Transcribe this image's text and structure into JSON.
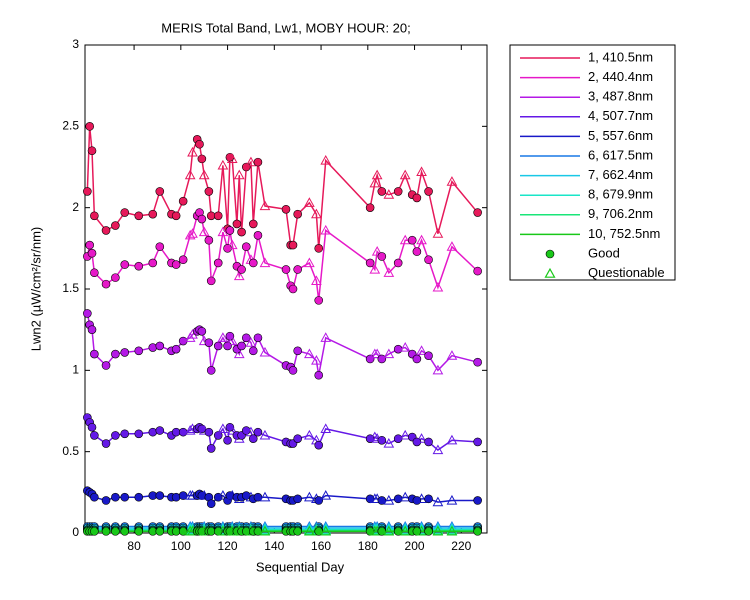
{
  "chart_data": {
    "type": "line",
    "title": "MERIS Total Band, Lw1, MOBY HOUR: 20;",
    "x_label": "Sequential Day",
    "y_label": "Lwn2 (µW/cm²/sr/nm)",
    "xlim": [
      59,
      231
    ],
    "ylim": [
      0,
      3
    ],
    "xticks": [
      80,
      100,
      120,
      140,
      160,
      180,
      200,
      220
    ],
    "yticks": [
      0,
      0.5,
      1,
      1.5,
      2,
      2.5,
      3
    ],
    "legend": "outside-upper-right",
    "marker_legend": [
      {
        "name": "Good",
        "color": "#19c819"
      },
      {
        "name": "Questionable",
        "color": "#19c819"
      }
    ],
    "x": [
      60,
      61,
      62,
      63,
      68,
      72,
      76,
      82,
      88,
      91,
      96,
      98,
      101,
      104,
      105,
      107,
      108,
      109,
      110,
      112,
      113,
      116,
      118,
      120,
      121,
      122,
      124,
      125,
      126,
      128,
      130,
      131,
      133,
      136,
      145,
      147,
      148,
      150,
      155,
      158,
      159,
      162,
      181,
      183,
      184,
      186,
      189,
      193,
      196,
      199,
      201,
      203,
      206,
      210,
      216,
      227
    ],
    "quality": [
      0,
      0,
      0,
      0,
      0,
      0,
      0,
      0,
      0,
      0,
      0,
      0,
      0,
      1,
      1,
      0,
      0,
      0,
      1,
      0,
      0,
      0,
      1,
      0,
      0,
      1,
      0,
      1,
      0,
      0,
      1,
      0,
      0,
      1,
      0,
      0,
      0,
      0,
      1,
      1,
      0,
      1,
      0,
      1,
      1,
      0,
      1,
      0,
      1,
      0,
      0,
      1,
      0,
      1,
      1,
      0
    ],
    "series": [
      {
        "name": "1, 410.5nm",
        "color": "#e6195a",
        "values": [
          2.1,
          2.5,
          2.35,
          1.95,
          1.86,
          1.89,
          1.97,
          1.95,
          1.96,
          2.1,
          1.96,
          1.95,
          2.04,
          2.2,
          2.34,
          2.42,
          2.39,
          2.3,
          2.2,
          2.1,
          1.95,
          1.95,
          2.26,
          1.87,
          2.31,
          2.3,
          1.9,
          2.2,
          1.85,
          2.25,
          2.28,
          1.9,
          2.28,
          2.01,
          1.99,
          1.77,
          1.77,
          1.96,
          2.03,
          1.96,
          1.75,
          2.29,
          2.0,
          2.15,
          2.2,
          2.1,
          2.08,
          2.1,
          2.2,
          2.08,
          2.06,
          2.22,
          2.1,
          1.84,
          2.16,
          1.97
        ]
      },
      {
        "name": "2, 440.4nm",
        "color": "#e619c8",
        "values": [
          1.7,
          1.77,
          1.72,
          1.6,
          1.53,
          1.57,
          1.65,
          1.64,
          1.66,
          1.76,
          1.66,
          1.65,
          1.68,
          1.83,
          1.84,
          1.95,
          1.97,
          1.93,
          1.85,
          1.8,
          1.55,
          1.66,
          1.85,
          1.75,
          1.86,
          1.77,
          1.64,
          1.58,
          1.62,
          1.76,
          1.68,
          1.66,
          1.83,
          1.66,
          1.62,
          1.52,
          1.5,
          1.62,
          1.66,
          1.55,
          1.43,
          1.86,
          1.66,
          1.62,
          1.73,
          1.7,
          1.6,
          1.66,
          1.8,
          1.8,
          1.73,
          1.8,
          1.68,
          1.51,
          1.76,
          1.61
        ]
      },
      {
        "name": "3, 487.8nm",
        "color": "#b419e6",
        "values": [
          1.35,
          1.28,
          1.25,
          1.1,
          1.03,
          1.1,
          1.11,
          1.12,
          1.14,
          1.15,
          1.12,
          1.13,
          1.18,
          1.2,
          1.22,
          1.24,
          1.25,
          1.24,
          1.18,
          1.17,
          1.0,
          1.15,
          1.2,
          1.15,
          1.21,
          1.18,
          1.13,
          1.1,
          1.15,
          1.2,
          1.17,
          1.12,
          1.2,
          1.11,
          1.03,
          1.02,
          1.0,
          1.12,
          1.1,
          1.06,
          0.97,
          1.2,
          1.07,
          1.1,
          1.1,
          1.07,
          1.1,
          1.13,
          1.14,
          1.1,
          1.07,
          1.12,
          1.09,
          1.0,
          1.09,
          1.05
        ]
      },
      {
        "name": "4, 507.7nm",
        "color": "#6419e6",
        "values": [
          0.71,
          0.68,
          0.65,
          0.6,
          0.55,
          0.6,
          0.61,
          0.61,
          0.62,
          0.63,
          0.6,
          0.62,
          0.62,
          0.63,
          0.64,
          0.64,
          0.65,
          0.64,
          0.63,
          0.62,
          0.52,
          0.6,
          0.64,
          0.57,
          0.65,
          0.63,
          0.6,
          0.58,
          0.6,
          0.63,
          0.62,
          0.58,
          0.62,
          0.6,
          0.56,
          0.55,
          0.55,
          0.58,
          0.6,
          0.57,
          0.54,
          0.64,
          0.58,
          0.59,
          0.58,
          0.57,
          0.55,
          0.58,
          0.6,
          0.59,
          0.56,
          0.58,
          0.56,
          0.51,
          0.57,
          0.56
        ]
      },
      {
        "name": "5, 557.6nm",
        "color": "#1919c8",
        "values": [
          0.26,
          0.25,
          0.24,
          0.22,
          0.2,
          0.22,
          0.22,
          0.22,
          0.23,
          0.23,
          0.22,
          0.22,
          0.23,
          0.23,
          0.23,
          0.23,
          0.24,
          0.23,
          0.23,
          0.22,
          0.18,
          0.22,
          0.23,
          0.2,
          0.23,
          0.23,
          0.22,
          0.21,
          0.22,
          0.23,
          0.22,
          0.21,
          0.22,
          0.22,
          0.21,
          0.2,
          0.2,
          0.21,
          0.22,
          0.21,
          0.2,
          0.23,
          0.21,
          0.21,
          0.21,
          0.2,
          0.2,
          0.21,
          0.22,
          0.21,
          0.2,
          0.21,
          0.21,
          0.19,
          0.2,
          0.2
        ]
      },
      {
        "name": "6, 617.5nm",
        "color": "#1978e6",
        "values": [
          0.04,
          0.04,
          0.04,
          0.04,
          0.04,
          0.04,
          0.04,
          0.04,
          0.04,
          0.04,
          0.04,
          0.04,
          0.04,
          0.04,
          0.04,
          0.04,
          0.04,
          0.04,
          0.04,
          0.04,
          0.04,
          0.04,
          0.04,
          0.04,
          0.04,
          0.04,
          0.04,
          0.04,
          0.04,
          0.04,
          0.04,
          0.04,
          0.04,
          0.04,
          0.04,
          0.04,
          0.04,
          0.04,
          0.04,
          0.04,
          0.04,
          0.04,
          0.04,
          0.04,
          0.04,
          0.04,
          0.04,
          0.04,
          0.04,
          0.04,
          0.04,
          0.04,
          0.04,
          0.04,
          0.04,
          0.04
        ]
      },
      {
        "name": "7, 662.4nm",
        "color": "#19c8e6",
        "values": [
          0.03,
          0.03,
          0.03,
          0.03,
          0.03,
          0.03,
          0.03,
          0.03,
          0.03,
          0.03,
          0.03,
          0.03,
          0.03,
          0.03,
          0.03,
          0.03,
          0.03,
          0.03,
          0.03,
          0.03,
          0.03,
          0.03,
          0.03,
          0.03,
          0.03,
          0.03,
          0.03,
          0.03,
          0.03,
          0.03,
          0.03,
          0.03,
          0.03,
          0.03,
          0.03,
          0.03,
          0.03,
          0.03,
          0.03,
          0.03,
          0.03,
          0.03,
          0.03,
          0.03,
          0.03,
          0.03,
          0.03,
          0.03,
          0.03,
          0.03,
          0.03,
          0.03,
          0.03,
          0.03,
          0.03,
          0.03
        ]
      },
      {
        "name": "8, 679.9nm",
        "color": "#19e6c8",
        "values": [
          0.02,
          0.02,
          0.02,
          0.02,
          0.02,
          0.02,
          0.02,
          0.02,
          0.02,
          0.02,
          0.02,
          0.02,
          0.02,
          0.02,
          0.02,
          0.02,
          0.02,
          0.02,
          0.02,
          0.02,
          0.02,
          0.02,
          0.02,
          0.02,
          0.02,
          0.02,
          0.02,
          0.02,
          0.02,
          0.02,
          0.02,
          0.02,
          0.02,
          0.02,
          0.02,
          0.02,
          0.02,
          0.02,
          0.02,
          0.02,
          0.02,
          0.02,
          0.02,
          0.02,
          0.02,
          0.02,
          0.02,
          0.02,
          0.02,
          0.02,
          0.02,
          0.02,
          0.02,
          0.02,
          0.02,
          0.02
        ]
      },
      {
        "name": "9, 706.2nm",
        "color": "#19e678",
        "values": [
          0.015,
          0.015,
          0.015,
          0.015,
          0.015,
          0.015,
          0.015,
          0.015,
          0.015,
          0.015,
          0.015,
          0.015,
          0.015,
          0.015,
          0.015,
          0.015,
          0.015,
          0.015,
          0.015,
          0.015,
          0.015,
          0.015,
          0.015,
          0.015,
          0.015,
          0.015,
          0.015,
          0.015,
          0.015,
          0.015,
          0.015,
          0.015,
          0.015,
          0.015,
          0.015,
          0.015,
          0.015,
          0.015,
          0.015,
          0.015,
          0.015,
          0.015,
          0.015,
          0.015,
          0.015,
          0.015,
          0.015,
          0.015,
          0.015,
          0.015,
          0.015,
          0.015,
          0.015,
          0.015,
          0.015,
          0.015
        ]
      },
      {
        "name": "10, 752.5nm",
        "color": "#19c819",
        "values": [
          0.01,
          0.01,
          0.01,
          0.01,
          0.01,
          0.01,
          0.01,
          0.01,
          0.01,
          0.01,
          0.01,
          0.01,
          0.01,
          0.01,
          0.01,
          0.01,
          0.01,
          0.01,
          0.01,
          0.01,
          0.01,
          0.01,
          0.01,
          0.01,
          0.01,
          0.01,
          0.01,
          0.01,
          0.01,
          0.01,
          0.01,
          0.01,
          0.01,
          0.01,
          0.01,
          0.01,
          0.01,
          0.01,
          0.01,
          0.01,
          0.01,
          0.01,
          0.01,
          0.01,
          0.01,
          0.01,
          0.01,
          0.01,
          0.01,
          0.01,
          0.01,
          0.01,
          0.01,
          0.01,
          0.01,
          0.01
        ]
      }
    ]
  }
}
